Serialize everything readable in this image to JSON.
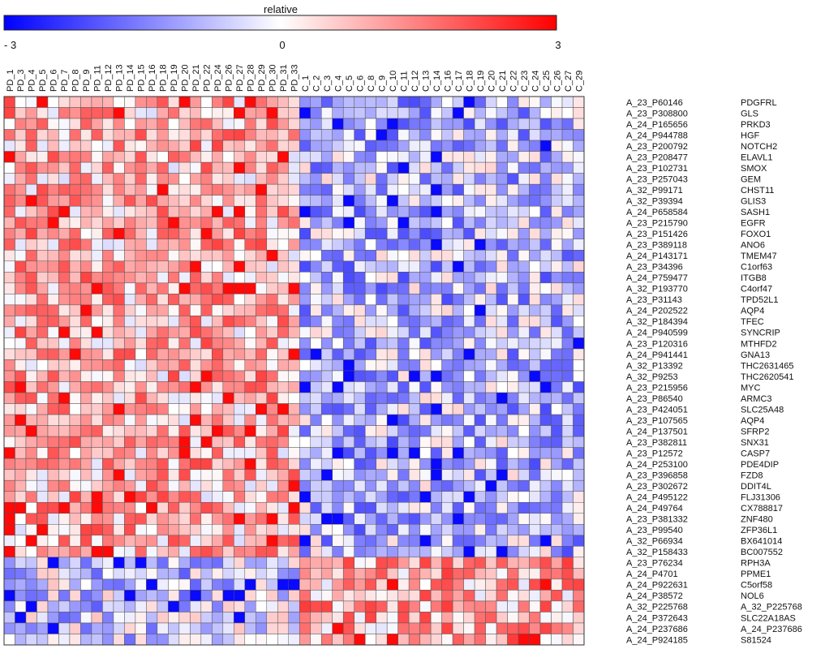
{
  "chart_data": {
    "type": "heatmap",
    "legend": {
      "title": "relative",
      "min_label": "- 3",
      "mid_label": "0",
      "max_label": "3",
      "range": [
        -3,
        3
      ],
      "placement": "top-left"
    },
    "colors": {
      "low": "#0000ff",
      "mid": "#ffffff",
      "high": "#ff0000",
      "cell_border": "#555555"
    },
    "columns": [
      "PD_1",
      "PD_3",
      "PD_4",
      "PD_5",
      "PD_6",
      "PD_7",
      "PD_8",
      "PD_9",
      "PD_11",
      "PD_12",
      "PD_13",
      "PD_14",
      "PD_15",
      "PD_16",
      "PD_18",
      "PD_19",
      "PD_20",
      "PD_21",
      "PD_22",
      "PD_24",
      "PD_26",
      "PD_27",
      "PD_28",
      "PD_29",
      "PD_30",
      "PD_31",
      "PD_33",
      "C_1",
      "C_2",
      "C_3",
      "C_4",
      "C_5",
      "C_6",
      "C_8",
      "C_9",
      "C_10",
      "C_11",
      "C_12",
      "C_13",
      "C_14",
      "C_16",
      "C_17",
      "C_18",
      "C_19",
      "C_20",
      "C_21",
      "C_22",
      "C_23",
      "C_24",
      "C_25",
      "C_26",
      "C_27",
      "C_29"
    ],
    "row_ids": [
      "A_23_P60146",
      "A_23_P308800",
      "A_24_P165656",
      "A_24_P944788",
      "A_23_P200792",
      "A_23_P208477",
      "A_23_P102731",
      "A_23_P257043",
      "A_32_P99171",
      "A_32_P39394",
      "A_24_P658584",
      "A_23_P215790",
      "A_23_P151426",
      "A_23_P389118",
      "A_24_P143171",
      "A_23_P34396",
      "A_24_P759477",
      "A_32_P193770",
      "A_23_P31143",
      "A_24_P202522",
      "A_32_P184394",
      "A_24_P940599",
      "A_23_P120316",
      "A_24_P941441",
      "A_32_P13392",
      "A_32_P9253",
      "A_23_P215956",
      "A_23_P86540",
      "A_23_P424051",
      "A_23_P107565",
      "A_24_P137501",
      "A_23_P382811",
      "A_23_P12572",
      "A_24_P253100",
      "A_23_P396858",
      "A_23_P302672",
      "A_24_P495122",
      "A_24_P49764",
      "A_23_P381332",
      "A_23_P99540",
      "A_32_P66934",
      "A_32_P158433",
      "A_23_P76234",
      "A_24_P4701",
      "A_24_P922631",
      "A_24_P38572",
      "A_32_P225768",
      "A_24_P372643",
      "A_24_P237686",
      "A_24_P924185"
    ],
    "row_genes": [
      "PDGFRL",
      "GLS",
      "PRKD3",
      "HGF",
      "NOTCH2",
      "ELAVL1",
      "SMOX",
      "GEM",
      "CHST11",
      "GLIS3",
      "SASH1",
      "EGFR",
      "FOXO1",
      "ANO6",
      "TMEM47",
      "C1orf63",
      "ITGB8",
      "C4orf47",
      "TPD52L1",
      "AQP4",
      "TFEC",
      "SYNCRIP",
      "MTHFD2",
      "GNA13",
      "THC2631465",
      "THC2620541",
      "MYC",
      "ARMC3",
      "SLC25A48",
      "AQP4",
      "SFRP2",
      "SNX31",
      "CASP7",
      "PDE4DIP",
      "FZD8",
      "DDIT4L",
      "FLJ31306",
      "CX788817",
      "ZNF480",
      "ZFP36L1",
      "BX641014",
      "BC007552",
      "RPH3A",
      "PPME1",
      "C5orf58",
      "NOL6",
      "A_32_P225768",
      "SLC22A18AS",
      "A_24_P237686",
      "S81524"
    ],
    "values": []
  }
}
